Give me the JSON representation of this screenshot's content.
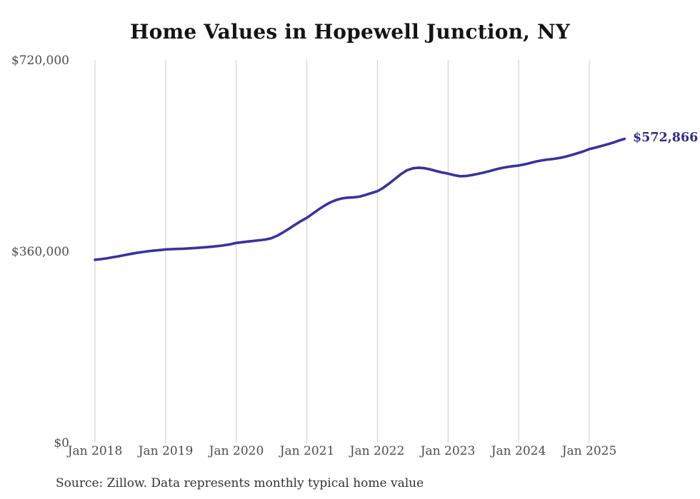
{
  "title": "Home Values in Hopewell Junction, NY",
  "source_note": "Source: Zillow. Data represents monthly typical home value",
  "end_label": "$572,866",
  "colors": {
    "line": "#3733a0",
    "end_label": "#2e2b8e",
    "grid": "#cccccc",
    "tick_text": "#4d4d4d",
    "title_text": "#141414",
    "source_text": "#333333",
    "background": "#ffffff"
  },
  "chart_data": {
    "type": "line",
    "title": "Home Values in Hopewell Junction, NY",
    "xlabel": "",
    "ylabel": "",
    "ylim": [
      0,
      720000
    ],
    "grid": "vertical-only",
    "legend": "none",
    "final_value": 572866,
    "final_value_label": "$572,866",
    "line_color": "#3733a0",
    "grid_color": "#cccccc",
    "y_ticks": [
      {
        "value": 0,
        "label": "$0"
      },
      {
        "value": 360000,
        "label": "$360,000"
      },
      {
        "value": 720000,
        "label": "$720,000"
      }
    ],
    "x_ticks": [
      "Jan 2018",
      "Jan 2019",
      "Jan 2020",
      "Jan 2021",
      "Jan 2022",
      "Jan 2023",
      "Jan 2024",
      "Jan 2025"
    ],
    "months": [
      "2018-01",
      "2018-02",
      "2018-03",
      "2018-04",
      "2018-05",
      "2018-06",
      "2018-07",
      "2018-08",
      "2018-09",
      "2018-10",
      "2018-11",
      "2018-12",
      "2019-01",
      "2019-02",
      "2019-03",
      "2019-04",
      "2019-05",
      "2019-06",
      "2019-07",
      "2019-08",
      "2019-09",
      "2019-10",
      "2019-11",
      "2019-12",
      "2020-01",
      "2020-02",
      "2020-03",
      "2020-04",
      "2020-05",
      "2020-06",
      "2020-07",
      "2020-08",
      "2020-09",
      "2020-10",
      "2020-11",
      "2020-12",
      "2021-01",
      "2021-02",
      "2021-03",
      "2021-04",
      "2021-05",
      "2021-06",
      "2021-07",
      "2021-08",
      "2021-09",
      "2021-10",
      "2021-11",
      "2021-12",
      "2022-01",
      "2022-02",
      "2022-03",
      "2022-04",
      "2022-05",
      "2022-06",
      "2022-07",
      "2022-08",
      "2022-09",
      "2022-10",
      "2022-11",
      "2022-12",
      "2023-01",
      "2023-02",
      "2023-03",
      "2023-04",
      "2023-05",
      "2023-06",
      "2023-07",
      "2023-08",
      "2023-09",
      "2023-10",
      "2023-11",
      "2023-12",
      "2024-01",
      "2024-02",
      "2024-03",
      "2024-04",
      "2024-05",
      "2024-06",
      "2024-07",
      "2024-08",
      "2024-09",
      "2024-10",
      "2024-11",
      "2024-12",
      "2025-01",
      "2025-02",
      "2025-03",
      "2025-04",
      "2025-05",
      "2025-06",
      "2025-07"
    ],
    "values": [
      345300,
      346600,
      348100,
      350000,
      352000,
      354100,
      356300,
      358200,
      359900,
      361300,
      362500,
      363600,
      364900,
      365400,
      365800,
      366200,
      366800,
      367500,
      368300,
      369200,
      370200,
      371300,
      372700,
      374500,
      377000,
      378400,
      379700,
      381000,
      382200,
      383500,
      386100,
      390900,
      397100,
      404100,
      411300,
      418100,
      424300,
      432100,
      440100,
      447300,
      453300,
      457900,
      460900,
      462300,
      462900,
      464300,
      467500,
      470900,
      474500,
      480900,
      488900,
      497700,
      506500,
      513700,
      517500,
      518700,
      517700,
      515300,
      512300,
      509700,
      507500,
      504700,
      502700,
      502900,
      504700,
      506900,
      509300,
      512100,
      515100,
      517900,
      519900,
      521500,
      522700,
      524900,
      527700,
      530500,
      532500,
      534100,
      535300,
      537100,
      539500,
      542500,
      545900,
      549400,
      553500,
      556300,
      559300,
      562300,
      565700,
      569500,
      572866
    ]
  }
}
